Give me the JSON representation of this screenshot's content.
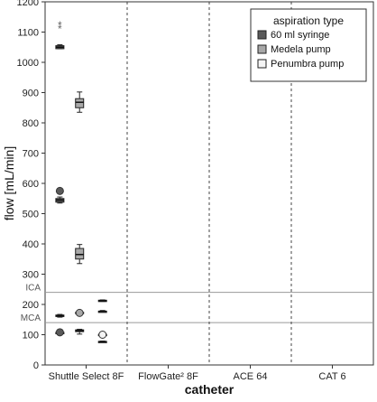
{
  "chart_data": {
    "type": "boxplot",
    "xlabel": "catheter",
    "ylabel": "flow [mL/min]",
    "ylim": [
      0,
      1200
    ],
    "yticks": [
      0,
      100,
      200,
      300,
      400,
      500,
      600,
      700,
      800,
      900,
      1000,
      1100,
      1200
    ],
    "categories": [
      "Shuttle Select 8F",
      "FlowGate² 8F",
      "ACE 64",
      "CAT 6"
    ],
    "legend": {
      "title": "aspiration type",
      "placement": "top-right",
      "entries": [
        "60 ml syringe",
        "Medela pump",
        "Penumbra pump"
      ]
    },
    "series_colors": {
      "60 ml syringe": "#5a5a5a",
      "Medela pump": "#a8a8a8",
      "Penumbra pump": "#f4f4f4"
    },
    "reference_lines": [
      {
        "label": "ICA",
        "value": 240
      },
      {
        "label": "MCA",
        "value": 140
      }
    ],
    "boxes": [
      {
        "category": "Shuttle Select 8F",
        "series": "60 ml syringe",
        "min": 1045,
        "q1": 1045,
        "median": 1050,
        "q3": 1055,
        "max": 1058,
        "outliers": [
          {
            "value": 1110,
            "marker": "star"
          },
          {
            "value": 1122,
            "marker": "star"
          }
        ]
      },
      {
        "category": "Shuttle Select 8F",
        "series": "Medela pump",
        "min": 835,
        "q1": 850,
        "median": 868,
        "q3": 880,
        "max": 902,
        "outliers": []
      },
      {
        "category": "Shuttle Select 8F",
        "series": "Penumbra pump",
        "min": 210,
        "q1": 210,
        "median": 212,
        "q3": 214,
        "max": 215,
        "outliers": []
      },
      {
        "category": "FlowGate² 8F",
        "series": "60 ml syringe",
        "min": 535,
        "q1": 538,
        "median": 545,
        "q3": 550,
        "max": 555,
        "outliers": [
          {
            "value": 575,
            "marker": "circle"
          }
        ]
      },
      {
        "category": "FlowGate² 8F",
        "series": "Medela pump",
        "min": 335,
        "q1": 350,
        "median": 365,
        "q3": 385,
        "max": 398,
        "outliers": []
      },
      {
        "category": "FlowGate² 8F",
        "series": "Penumbra pump",
        "min": 175,
        "q1": 175,
        "median": 177,
        "q3": 178,
        "max": 180,
        "outliers": []
      },
      {
        "category": "ACE 64",
        "series": "60 ml syringe",
        "min": 158,
        "q1": 160,
        "median": 162,
        "q3": 165,
        "max": 167,
        "outliers": []
      },
      {
        "category": "ACE 64",
        "series": "Medela pump",
        "min": 170,
        "q1": 170,
        "median": 172,
        "q3": 174,
        "max": 175,
        "outliers": [
          {
            "value": 172,
            "marker": "circle"
          }
        ]
      },
      {
        "category": "ACE 64",
        "series": "Penumbra pump",
        "min": 98,
        "q1": 98,
        "median": 100,
        "q3": 101,
        "max": 102,
        "outliers": [
          {
            "value": 100,
            "marker": "circle"
          }
        ]
      },
      {
        "category": "CAT 6",
        "series": "60 ml syringe",
        "min": 100,
        "q1": 103,
        "median": 105,
        "q3": 108,
        "max": 110,
        "outliers": [
          {
            "value": 108,
            "marker": "circle"
          }
        ]
      },
      {
        "category": "CAT 6",
        "series": "Medela pump",
        "min": 102,
        "q1": 110,
        "median": 113,
        "q3": 116,
        "max": 118,
        "outliers": []
      },
      {
        "category": "CAT 6",
        "series": "Penumbra pump",
        "min": 75,
        "q1": 75,
        "median": 77,
        "q3": 78,
        "max": 79,
        "outliers": []
      }
    ]
  }
}
